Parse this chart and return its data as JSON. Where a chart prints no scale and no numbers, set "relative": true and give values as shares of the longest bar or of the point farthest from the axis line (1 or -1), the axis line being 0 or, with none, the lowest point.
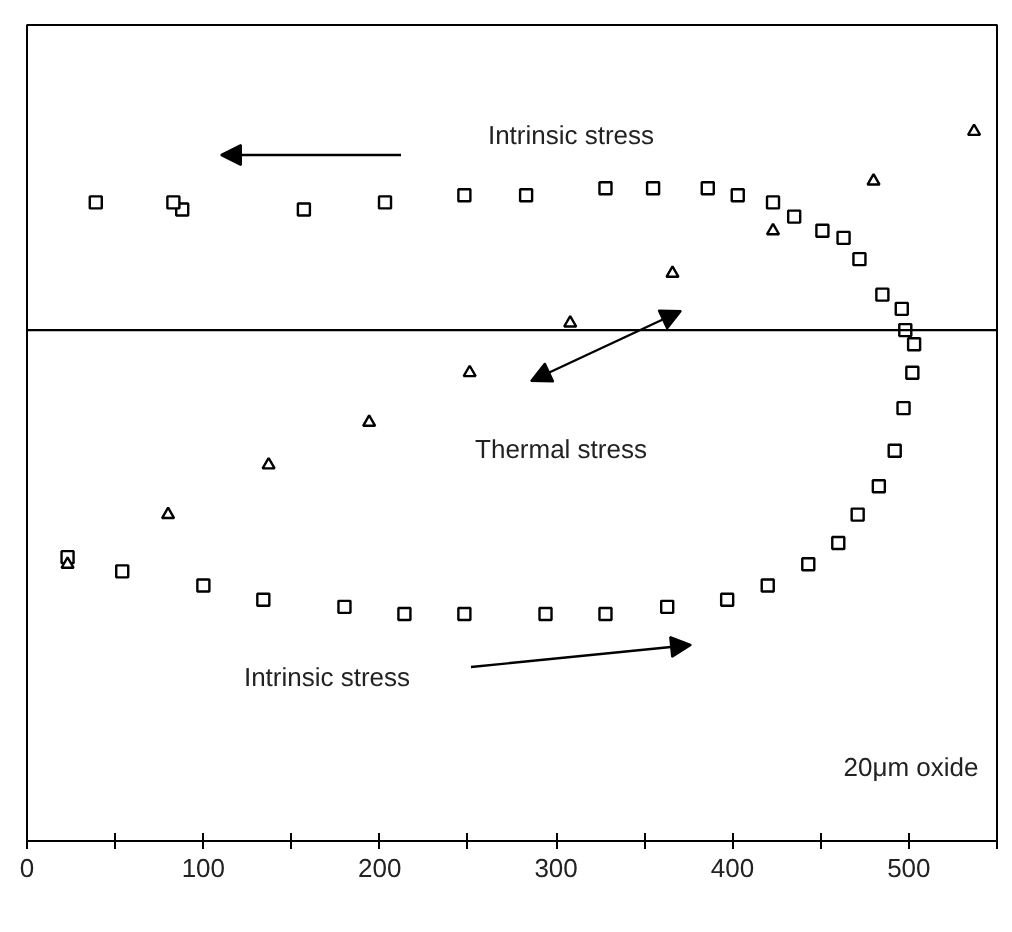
{
  "chart_data": {
    "type": "scatter",
    "relative": true,
    "xlim": [
      0,
      550
    ],
    "xticks": [
      0,
      {
        "value": 50,
        "label": null
      },
      100,
      {
        "value": 150,
        "label": null
      },
      200,
      {
        "value": 250,
        "label": null
      },
      300,
      {
        "value": 350,
        "label": null
      },
      400,
      {
        "value": 450,
        "label": null
      },
      500,
      {
        "value": 550,
        "label": null
      }
    ],
    "grid": false,
    "series": [
      {
        "color": "#000000",
        "marker": "square",
        "x": [
          23,
          54,
          100,
          134,
          180,
          214,
          248,
          294,
          328,
          363,
          397,
          420,
          443,
          460,
          471,
          483,
          492,
          497,
          502,
          503,
          498,
          496,
          485,
          472,
          463,
          451,
          435,
          423,
          403,
          386,
          355,
          328,
          283,
          248,
          203,
          157,
          88,
          83,
          39
        ],
        "values": [
          0.4,
          0.38,
          0.36,
          0.34,
          0.33,
          0.32,
          0.32,
          0.32,
          0.32,
          0.33,
          0.34,
          0.36,
          0.39,
          0.42,
          0.46,
          0.5,
          0.55,
          0.61,
          0.66,
          0.7,
          0.72,
          0.75,
          0.77,
          0.82,
          0.85,
          0.86,
          0.88,
          0.9,
          0.91,
          0.92,
          0.92,
          0.92,
          0.91,
          0.91,
          0.9,
          0.89,
          0.89,
          0.9,
          0.9
        ]
      },
      {
        "color": "#000000",
        "marker": "triangle",
        "x": [
          23,
          80,
          137,
          194,
          251,
          308,
          366,
          423,
          480,
          537
        ],
        "values": [
          0.39,
          0.46,
          0.53,
          0.59,
          0.66,
          0.73,
          0.8,
          0.86,
          0.93,
          1.0
        ]
      }
    ],
    "ref_lines": [
      {
        "axis": "y",
        "value": 0.72,
        "color": "#000000"
      }
    ],
    "annotations": [
      "Intrinsic stress",
      "Thermal stress",
      "Intrinsic stress",
      "20μm oxide"
    ]
  }
}
